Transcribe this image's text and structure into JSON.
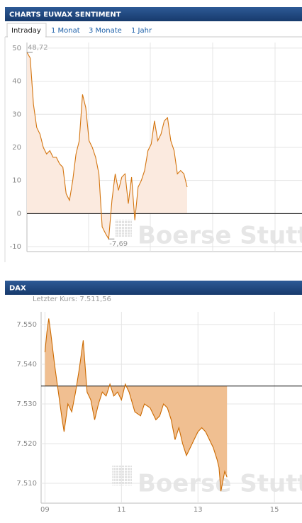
{
  "tabs": [
    "Intraday",
    "1 Monat",
    "3 Monate",
    "1 Jahr"
  ],
  "chart_data": [
    {
      "type": "area",
      "title": "CHARTS EUWAX SENTIMENT",
      "watermark": "Boerse Stutt",
      "values": [
        48.72,
        47,
        33,
        26,
        24,
        20,
        18,
        19,
        17,
        17,
        15,
        14,
        6,
        4,
        10,
        18,
        22,
        36,
        32,
        22,
        20,
        17,
        12,
        -4,
        -6,
        -7.69,
        4,
        12,
        7,
        11,
        12,
        3,
        11,
        -2,
        8,
        10,
        13,
        19,
        21,
        28,
        22,
        24,
        28,
        29,
        22,
        19,
        12,
        13,
        12,
        8
      ],
      "annotations": [
        "48,72",
        "-7,69"
      ],
      "baseline": 0,
      "color": "#d4750f",
      "fill": "#fbeadf",
      "ylim": [
        -11.5,
        51.7
      ],
      "yticks": [
        -10,
        0,
        10,
        20,
        30,
        40,
        50
      ],
      "grid": true
    },
    {
      "type": "area",
      "title": "DAX",
      "subtitle": "Letzter Kurs: 7.511,56",
      "watermark": "Boerse Stutt",
      "x": [
        9.0,
        9.05,
        9.1,
        9.15,
        9.25,
        9.35,
        9.45,
        9.5,
        9.6,
        9.7,
        9.8,
        9.9,
        10.0,
        10.1,
        10.2,
        10.3,
        10.4,
        10.5,
        10.6,
        10.7,
        10.8,
        10.9,
        11.0,
        11.1,
        11.2,
        11.35,
        11.5,
        11.6,
        11.75,
        11.9,
        12.0,
        12.1,
        12.2,
        12.3,
        12.4,
        12.5,
        12.6,
        12.7,
        12.8,
        12.9,
        13.0,
        13.1,
        13.2,
        13.3,
        13.4,
        13.5,
        13.55,
        13.6,
        13.7,
        13.76
      ],
      "values": [
        7543,
        7548,
        7551.5,
        7548,
        7540,
        7533,
        7526,
        7523,
        7530,
        7528,
        7533,
        7539,
        7546,
        7533,
        7531,
        7526,
        7530,
        7533,
        7532,
        7535,
        7532,
        7533,
        7531,
        7535,
        7533,
        7528,
        7527,
        7530,
        7529,
        7526,
        7527,
        7530,
        7529,
        7526,
        7521,
        7524,
        7520,
        7517,
        7519,
        7521,
        7523,
        7524,
        7523,
        7521,
        7519,
        7516,
        7514,
        7508,
        7513,
        7511.56
      ],
      "baseline": 7534.5,
      "color": "#cc6a00",
      "fill": "#f0bf91",
      "xlim": [
        8.9,
        15.72
      ],
      "xticks": [
        {
          "value": 9,
          "label": "09"
        },
        {
          "value": 11,
          "label": "11"
        },
        {
          "value": 13,
          "label": "13"
        },
        {
          "value": 15,
          "label": "15"
        }
      ],
      "ylim": [
        7505,
        7553.2
      ],
      "yticks": [
        {
          "value": 7510,
          "label": "7.510"
        },
        {
          "value": 7520,
          "label": "7.520"
        },
        {
          "value": 7530,
          "label": "7.530"
        },
        {
          "value": 7540,
          "label": "7.540"
        },
        {
          "value": 7550,
          "label": "7.550"
        }
      ],
      "grid": true
    }
  ]
}
